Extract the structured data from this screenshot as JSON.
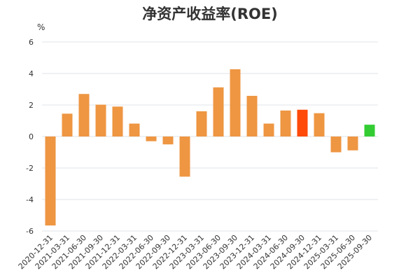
{
  "chart_data": {
    "type": "bar",
    "title": "净资产收益率(ROE)",
    "unit": "%",
    "xlabel": "",
    "ylabel": "",
    "ylim": [
      -6,
      6
    ],
    "yticks": [
      6,
      4,
      2,
      0,
      -2,
      -4,
      -6
    ],
    "grid": true,
    "categories": [
      "2020-12-31",
      "2021-03-31",
      "2021-06-30",
      "2021-09-30",
      "2021-12-31",
      "2022-03-31",
      "2022-06-30",
      "2022-09-30",
      "2022-12-31",
      "2023-03-31",
      "2023-06-30",
      "2023-09-30",
      "2023-12-31",
      "2024-03-31",
      "2024-06-30",
      "2024-09-30",
      "2024-12-31",
      "2025-03-31",
      "2025-06-30",
      "2025-09-30"
    ],
    "values": [
      -5.65,
      1.45,
      2.7,
      2.02,
      1.9,
      0.82,
      -0.3,
      -0.5,
      -2.55,
      1.6,
      3.12,
      4.27,
      2.58,
      0.82,
      1.65,
      1.7,
      1.48,
      -1.0,
      -0.88,
      0.75
    ],
    "colors": {
      "default": "#ee9642",
      "highlight": "#ff4a09",
      "latest": "#33cc33"
    },
    "highlight_index": 15,
    "latest_index": 19
  }
}
